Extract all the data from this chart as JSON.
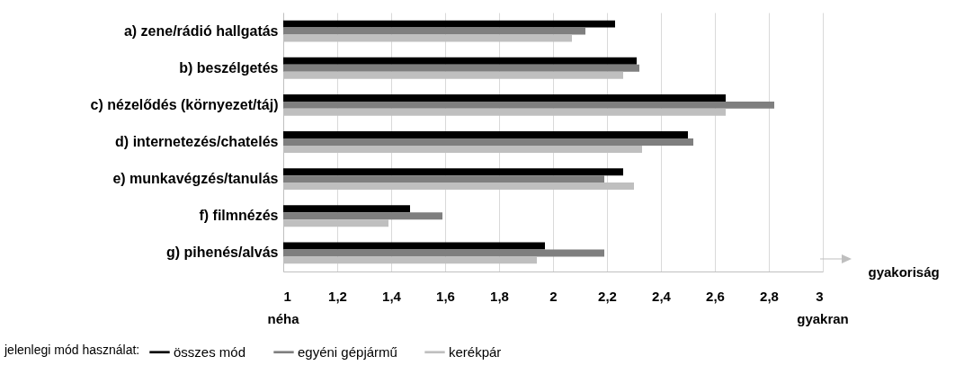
{
  "chart_data": {
    "type": "bar",
    "orientation": "horizontal",
    "xlabel": "gyakoriság",
    "legend_title": "jelenlegi mód használat:",
    "legend": "bottom",
    "grid": "x",
    "categories": [
      "a) zene/rádió hallgatás",
      "b) beszélgetés",
      "c) nézelődés (környezet/táj)",
      "d) internetezés/chatelés",
      "e) munkavégzés/tanulás",
      "f) filmnézés",
      "g) pihenés/alvás"
    ],
    "series": [
      {
        "name": "összes mód",
        "color": "#000000",
        "values": [
          2.23,
          2.31,
          2.64,
          2.5,
          2.26,
          1.47,
          1.97
        ]
      },
      {
        "name": "egyéni gépjármű",
        "color": "#7f7f7f",
        "values": [
          2.12,
          2.32,
          2.82,
          2.52,
          2.19,
          1.59,
          2.19
        ]
      },
      {
        "name": "kerékpár",
        "color": "#bfbfbf",
        "values": [
          2.07,
          2.26,
          2.64,
          2.33,
          2.3,
          1.39,
          1.94
        ]
      }
    ],
    "xlim": [
      1,
      3
    ],
    "xticks": [
      1,
      {
        "value": 1.2,
        "label": "1,2"
      },
      {
        "value": 1.4,
        "label": "1,4"
      },
      {
        "value": 1.6,
        "label": "1,6"
      },
      {
        "value": 1.8,
        "label": "1,8"
      },
      2,
      {
        "value": 2.2,
        "label": "2,2"
      },
      {
        "value": 2.4,
        "label": "2,4"
      },
      {
        "value": 2.6,
        "label": "2,6"
      },
      {
        "value": 2.8,
        "label": "2,8"
      },
      3
    ],
    "annotations": [
      "néha",
      "gyakran"
    ]
  }
}
